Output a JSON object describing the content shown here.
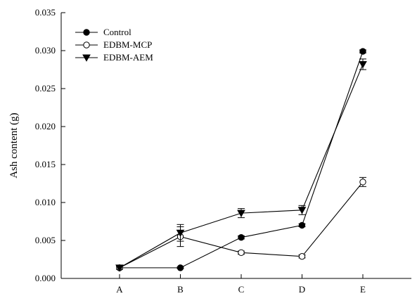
{
  "chart_data": {
    "type": "line",
    "title": "",
    "xlabel": "",
    "ylabel": "Ash content (g)",
    "categories": [
      "A",
      "B",
      "C",
      "D",
      "E"
    ],
    "ylim": [
      0.0,
      0.035
    ],
    "yticks": [
      "0.000",
      "0.005",
      "0.010",
      "0.015",
      "0.020",
      "0.025",
      "0.030",
      "0.035"
    ],
    "grid": false,
    "legend_position": "top-left",
    "series": [
      {
        "name": "Control",
        "marker": "filled-circle",
        "values": [
          0.0014,
          0.0014,
          0.0054,
          0.007,
          0.0299
        ],
        "errors": [
          0.0002,
          0.0001,
          0.0002,
          0.0002,
          0.0002
        ]
      },
      {
        "name": "EDBM-MCP",
        "marker": "open-circle",
        "values": [
          0.0014,
          0.0055,
          0.0034,
          0.0029,
          0.0127
        ],
        "errors": [
          0.0002,
          0.0013,
          0.0002,
          0.0002,
          0.0006
        ]
      },
      {
        "name": "EDBM-AEM",
        "marker": "filled-triangle-down",
        "values": [
          0.0014,
          0.006,
          0.0086,
          0.009,
          0.0282
        ],
        "errors": [
          0.0002,
          0.0011,
          0.0006,
          0.0006,
          0.0007
        ]
      }
    ]
  }
}
